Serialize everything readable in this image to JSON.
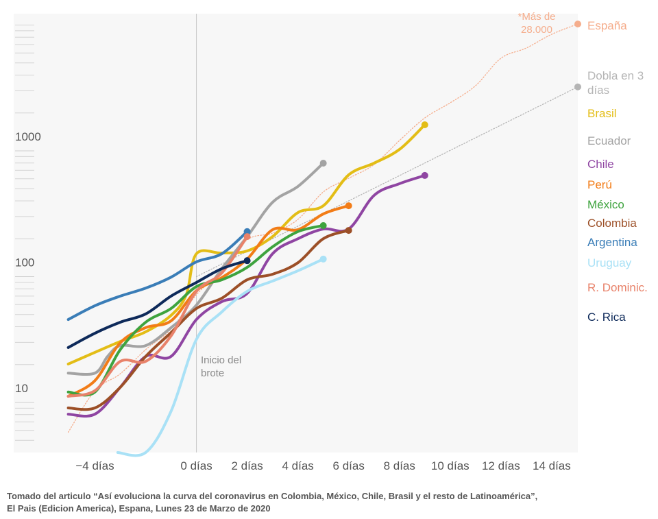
{
  "chart_data": {
    "type": "line",
    "log_y": true,
    "xlim": [
      -7.2,
      15.03
    ],
    "ylim": [
      4,
      12300
    ],
    "xticks": [
      {
        "value": -4,
        "label": "−4 días"
      },
      {
        "value": 0,
        "label": "0 días"
      },
      {
        "value": 2,
        "label": "2 días"
      },
      {
        "value": 4,
        "label": "4 días"
      },
      {
        "value": 6,
        "label": "6 días"
      },
      {
        "value": 8,
        "label": "8 días"
      },
      {
        "value": 10,
        "label": "10 días"
      },
      {
        "value": 12,
        "label": "12 días"
      },
      {
        "value": 14,
        "label": "14 días"
      }
    ],
    "yticks": [
      10,
      100,
      1000
    ],
    "yminorticks": [
      5,
      6,
      7,
      8,
      9,
      20,
      30,
      40,
      50,
      60,
      70,
      80,
      90,
      200,
      300,
      400,
      500,
      600,
      700,
      800,
      900,
      2000,
      3000,
      4000,
      5000,
      6000,
      7000,
      8000,
      9000,
      10000
    ],
    "annotations": [
      "*Más de 28.000",
      "Inicio del brote"
    ],
    "series": [
      {
        "name": "España",
        "color": "#f5ad8c",
        "dotted": true,
        "x": [
          -5.05,
          -4,
          -3,
          -2,
          -1,
          0,
          1,
          2,
          3,
          4,
          5,
          6,
          7,
          8,
          9,
          10,
          11,
          12,
          13,
          14,
          15.03
        ],
        "values": [
          5.8,
          12.4,
          16.9,
          26.3,
          38.3,
          71.7,
          111,
          196,
          222,
          285,
          471,
          605,
          778,
          1207,
          1826,
          2407,
          3294,
          5440,
          6564,
          8440,
          10190
        ]
      },
      {
        "name": "Dobla en 3 días",
        "color": "#b5b5b5",
        "dotted": true,
        "x": [
          0,
          15.03
        ],
        "values": [
          100,
          3222
        ]
      },
      {
        "name": "Brasil",
        "color": "#e3bd16",
        "x": [
          -5.05,
          -4,
          -3,
          -2,
          -1,
          -0.4,
          0,
          1,
          2,
          3,
          4,
          5,
          6,
          7,
          8,
          9
        ],
        "values": [
          20.2,
          25,
          30.5,
          36.4,
          49.2,
          71.7,
          152,
          154,
          160,
          208,
          323,
          366,
          644,
          798,
          1025,
          1611
        ]
      },
      {
        "name": "Ecuador",
        "color": "#a3a3a3",
        "x": [
          -5.05,
          -4,
          -3.5,
          -3,
          -2,
          -1,
          0,
          1,
          2,
          3,
          4,
          5
        ],
        "values": [
          17.1,
          17.1,
          23.2,
          28.3,
          28.3,
          39.3,
          59.4,
          115.6,
          208,
          390,
          521,
          798
        ]
      },
      {
        "name": "Chile",
        "color": "#8f45a2",
        "x": [
          -5.05,
          -4,
          -3,
          -2,
          -1,
          0,
          1,
          2,
          3,
          4,
          5,
          6,
          7,
          8,
          9
        ],
        "values": [
          8.07,
          8.07,
          13.2,
          23.2,
          23.2,
          45.6,
          63.3,
          73.6,
          152,
          200,
          239,
          239,
          442,
          548,
          637
        ]
      },
      {
        "name": "Perú",
        "color": "#f27c17",
        "x": [
          -5.05,
          -4,
          -3,
          -2,
          -1,
          0,
          1,
          2,
          3,
          4,
          5,
          6
        ],
        "values": [
          11.2,
          14.9,
          29.8,
          39.3,
          44.5,
          77.3,
          98.2,
          138,
          236,
          236,
          315,
          366
        ]
      },
      {
        "name": "México",
        "color": "#3ea33e",
        "x": [
          -5.05,
          -4,
          -3,
          -2,
          -1,
          0,
          1,
          2,
          3,
          4,
          5
        ],
        "values": [
          12.1,
          12.1,
          26.3,
          43.4,
          55.8,
          83.3,
          94.4,
          118.5,
          172.6,
          228,
          254.7
        ]
      },
      {
        "name": "Colombia",
        "color": "#9c4f27",
        "x": [
          -5.05,
          -4,
          -3,
          -2,
          -1,
          0,
          1,
          2,
          3,
          4,
          5,
          6
        ],
        "values": [
          9.04,
          9.04,
          13.2,
          23.2,
          35.9,
          55.8,
          67.3,
          94.4,
          104.5,
          129,
          200,
          233
        ]
      },
      {
        "name": "Argentina",
        "color": "#3a7db7",
        "x": [
          -5.05,
          -4,
          -3,
          -2,
          -1,
          0,
          1,
          2
        ],
        "values": [
          45.6,
          58.7,
          70,
          81,
          99,
          131,
          152,
          228
        ]
      },
      {
        "name": "Uruguay",
        "color": "#a9e1f6",
        "x": [
          -3.1,
          -2,
          -1,
          0,
          1,
          2,
          3,
          4,
          5
        ],
        "values": [
          4,
          4,
          8.5,
          31.7,
          52.4,
          76.4,
          92.2,
          111.3,
          138
        ]
      },
      {
        "name": "R. Dominic.",
        "color": "#e8826a",
        "x": [
          -5.05,
          -4,
          -3,
          -2,
          -1,
          0,
          1,
          2
        ],
        "values": [
          11.2,
          12.4,
          21.2,
          21.2,
          33.8,
          76.4,
          107,
          208
        ]
      },
      {
        "name": "C. Rica",
        "color": "#0e2a5a",
        "x": [
          -5.05,
          -4,
          -3,
          -2,
          -1,
          0,
          1,
          2
        ],
        "values": [
          27.3,
          35.5,
          43.4,
          50.5,
          70,
          89.9,
          115.6,
          134
        ]
      }
    ],
    "source": [
      "Tomado del articulo “Así evoluciona la curva del coronavirus en Colombia, México, Chile, Brasil y el resto de Latinoamérica”,",
      "El Pais (Edicion America), Espana, Lunes 23 de Marzo de 2020"
    ]
  }
}
